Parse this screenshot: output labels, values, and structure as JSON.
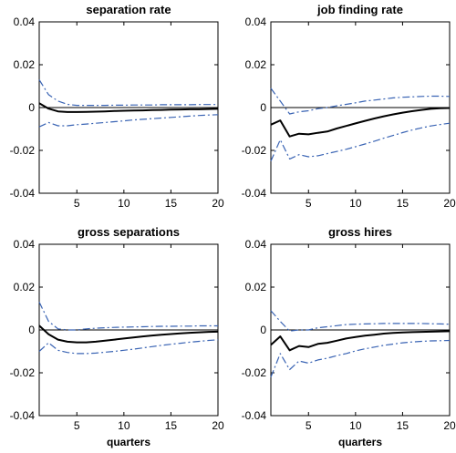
{
  "chart_data": [
    {
      "type": "line",
      "title": "separation rate",
      "xlabel": "",
      "xlim": [
        1,
        20
      ],
      "ylim": [
        -0.04,
        0.04
      ],
      "xticks": [
        5,
        10,
        15,
        20
      ],
      "yticks": [
        0.04,
        0.02,
        0,
        -0.02,
        -0.04
      ],
      "grid": false,
      "x": [
        1,
        2,
        3,
        4,
        5,
        6,
        7,
        8,
        9,
        10,
        11,
        12,
        13,
        14,
        15,
        16,
        17,
        18,
        19,
        20
      ],
      "series": [
        {
          "role": "estimate",
          "style": "solid",
          "values": [
            0.002,
            -0.0005,
            -0.0018,
            -0.0021,
            -0.0021,
            -0.002,
            -0.0019,
            -0.0018,
            -0.0016,
            -0.0015,
            -0.0014,
            -0.0013,
            -0.0012,
            -0.0011,
            -0.001,
            -0.0009,
            -0.0008,
            -0.0008,
            -0.0007,
            -0.0006
          ]
        },
        {
          "role": "upper",
          "style": "dashdot",
          "values": [
            0.013,
            0.006,
            0.003,
            0.0015,
            0.001,
            0.001,
            0.001,
            0.001,
            0.0011,
            0.0011,
            0.0012,
            0.0012,
            0.0012,
            0.0013,
            0.0013,
            0.0013,
            0.0013,
            0.0014,
            0.0014,
            0.0014
          ]
        },
        {
          "role": "lower",
          "style": "dashdot",
          "values": [
            -0.009,
            -0.007,
            -0.0085,
            -0.0085,
            -0.008,
            -0.0077,
            -0.0073,
            -0.007,
            -0.0066,
            -0.0062,
            -0.0058,
            -0.0055,
            -0.0052,
            -0.0049,
            -0.0046,
            -0.0043,
            -0.004,
            -0.0037,
            -0.0035,
            -0.0033
          ]
        }
      ]
    },
    {
      "type": "line",
      "title": "job finding rate",
      "xlabel": "",
      "xlim": [
        1,
        20
      ],
      "ylim": [
        -0.04,
        0.04
      ],
      "xticks": [
        5,
        10,
        15,
        20
      ],
      "yticks": [
        0.04,
        0.02,
        0,
        -0.02,
        -0.04
      ],
      "grid": false,
      "x": [
        1,
        2,
        3,
        4,
        5,
        6,
        7,
        8,
        9,
        10,
        11,
        12,
        13,
        14,
        15,
        16,
        17,
        18,
        19,
        20
      ],
      "series": [
        {
          "role": "estimate",
          "style": "solid",
          "values": [
            -0.008,
            -0.006,
            -0.0135,
            -0.0122,
            -0.0125,
            -0.0118,
            -0.0112,
            -0.0098,
            -0.0086,
            -0.0074,
            -0.0062,
            -0.0051,
            -0.0041,
            -0.0032,
            -0.0024,
            -0.0017,
            -0.0011,
            -0.0006,
            -0.0003,
            -0.0002
          ]
        },
        {
          "role": "upper",
          "style": "dashdot",
          "values": [
            0.009,
            0.003,
            -0.003,
            -0.002,
            -0.0015,
            -0.0005,
            0,
            0.0008,
            0.0015,
            0.0022,
            0.003,
            0.0035,
            0.004,
            0.0045,
            0.0048,
            0.005,
            0.0052,
            0.0053,
            0.0053,
            0.0052
          ]
        },
        {
          "role": "lower",
          "style": "dashdot",
          "values": [
            -0.025,
            -0.015,
            -0.024,
            -0.022,
            -0.023,
            -0.0225,
            -0.0215,
            -0.0205,
            -0.0195,
            -0.0183,
            -0.017,
            -0.0157,
            -0.0143,
            -0.013,
            -0.0117,
            -0.0105,
            -0.0095,
            -0.0086,
            -0.0079,
            -0.0073
          ]
        }
      ]
    },
    {
      "type": "line",
      "title": "gross separations",
      "xlabel": "quarters",
      "xlim": [
        1,
        20
      ],
      "ylim": [
        -0.04,
        0.04
      ],
      "xticks": [
        5,
        10,
        15,
        20
      ],
      "yticks": [
        0.04,
        0.02,
        0,
        -0.02,
        -0.04
      ],
      "grid": false,
      "x": [
        1,
        2,
        3,
        4,
        5,
        6,
        7,
        8,
        9,
        10,
        11,
        12,
        13,
        14,
        15,
        16,
        17,
        18,
        19,
        20
      ],
      "series": [
        {
          "role": "estimate",
          "style": "solid",
          "values": [
            0.002,
            -0.002,
            -0.0045,
            -0.0055,
            -0.0058,
            -0.0058,
            -0.0055,
            -0.005,
            -0.0045,
            -0.004,
            -0.0035,
            -0.003,
            -0.0026,
            -0.0022,
            -0.0019,
            -0.0016,
            -0.0013,
            -0.0011,
            -0.0009,
            -0.0008
          ]
        },
        {
          "role": "upper",
          "style": "dashdot",
          "values": [
            0.013,
            0.004,
            0.0005,
            0,
            0,
            0.0005,
            0.0008,
            0.001,
            0.0012,
            0.0013,
            0.0014,
            0.0015,
            0.0016,
            0.0017,
            0.0017,
            0.0018,
            0.0018,
            0.0019,
            0.0019,
            0.0019
          ]
        },
        {
          "role": "lower",
          "style": "dashdot",
          "values": [
            -0.01,
            -0.006,
            -0.0095,
            -0.0105,
            -0.011,
            -0.011,
            -0.0108,
            -0.0104,
            -0.01,
            -0.0095,
            -0.009,
            -0.0084,
            -0.0078,
            -0.0072,
            -0.0067,
            -0.0062,
            -0.0057,
            -0.0053,
            -0.0049,
            -0.0046
          ]
        }
      ]
    },
    {
      "type": "line",
      "title": "gross hires",
      "xlabel": "quarters",
      "xlim": [
        1,
        20
      ],
      "ylim": [
        -0.04,
        0.04
      ],
      "xticks": [
        5,
        10,
        15,
        20
      ],
      "yticks": [
        0.04,
        0.02,
        0,
        -0.02,
        -0.04
      ],
      "grid": false,
      "x": [
        1,
        2,
        3,
        4,
        5,
        6,
        7,
        8,
        9,
        10,
        11,
        12,
        13,
        14,
        15,
        16,
        17,
        18,
        19,
        20
      ],
      "series": [
        {
          "role": "estimate",
          "style": "solid",
          "values": [
            -0.007,
            -0.003,
            -0.0095,
            -0.0075,
            -0.008,
            -0.0065,
            -0.006,
            -0.005,
            -0.004,
            -0.0033,
            -0.0027,
            -0.0022,
            -0.0017,
            -0.0014,
            -0.0012,
            -0.001,
            -0.0009,
            -0.0008,
            -0.0007,
            -0.0006
          ]
        },
        {
          "role": "upper",
          "style": "dashdot",
          "values": [
            0.009,
            0.004,
            -0.0005,
            0,
            0,
            0.001,
            0.0015,
            0.002,
            0.0025,
            0.0027,
            0.0028,
            0.0029,
            0.003,
            0.003,
            0.003,
            0.003,
            0.003,
            0.0029,
            0.0028,
            0.0027
          ]
        },
        {
          "role": "lower",
          "style": "dashdot",
          "values": [
            -0.022,
            -0.011,
            -0.0185,
            -0.0145,
            -0.0155,
            -0.014,
            -0.0132,
            -0.012,
            -0.011,
            -0.0098,
            -0.0088,
            -0.008,
            -0.0072,
            -0.0066,
            -0.006,
            -0.0056,
            -0.0053,
            -0.0051,
            -0.005,
            -0.0049
          ]
        }
      ]
    }
  ],
  "colors": {
    "estimate": "#000000",
    "band": "#3a64b4",
    "axis": "#000000",
    "zero_line": "#000000"
  }
}
